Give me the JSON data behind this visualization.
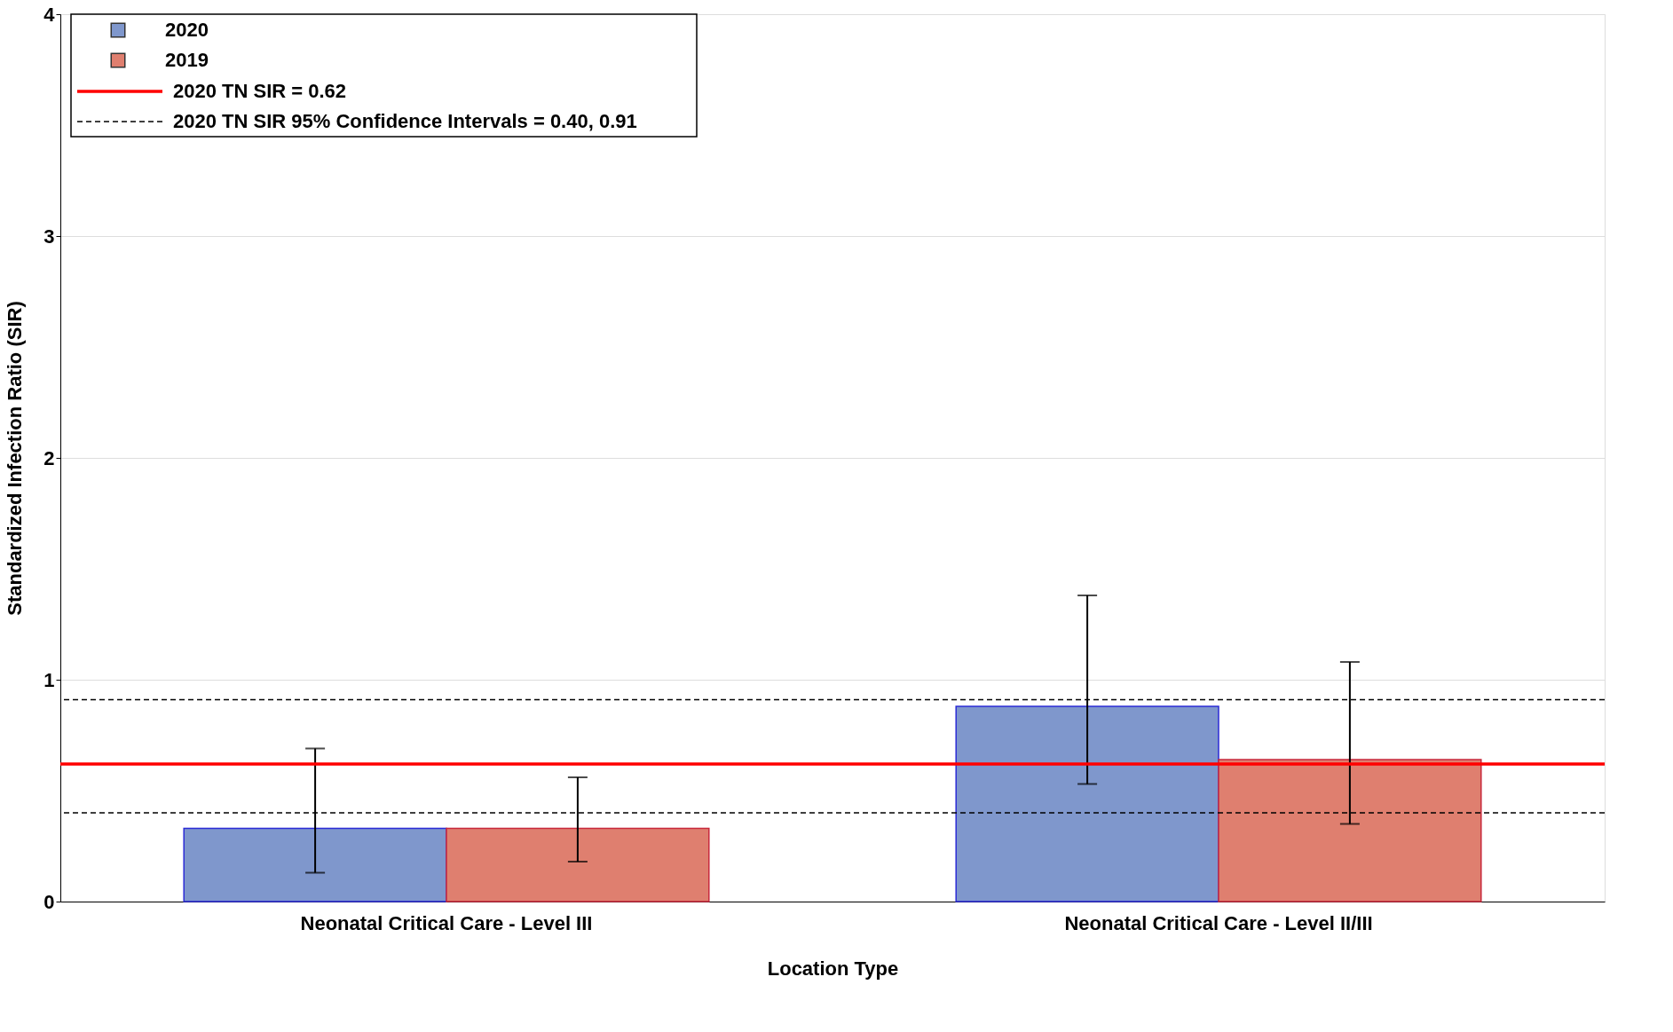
{
  "chart_data": {
    "type": "bar",
    "xlabel": "Location Type",
    "ylabel": "Standardized Infection Ratio (SIR)",
    "categories": [
      "Neonatal Critical Care - Level III",
      "Neonatal Critical Care - Level II/III"
    ],
    "series": [
      {
        "name": "2020",
        "color": "#7f97cc",
        "values": [
          0.33,
          0.88
        ],
        "errors": [
          [
            0.13,
            0.69
          ],
          [
            0.53,
            1.38
          ]
        ]
      },
      {
        "name": "2019",
        "color": "#df7f6f",
        "values": [
          0.33,
          0.64
        ],
        "errors": [
          [
            0.18,
            0.56
          ],
          [
            0.35,
            1.08
          ]
        ]
      }
    ],
    "ylim": [
      0,
      4
    ],
    "yticks": [
      0,
      1,
      2,
      3,
      4
    ],
    "grid": "y",
    "legend": "top left",
    "ref_lines": [
      {
        "axis": "y",
        "value": 0.62,
        "label": "2020 TN SIR = 0.62",
        "color": "#ff0000",
        "line_style": "solid"
      },
      {
        "axis": "y",
        "value": 0.4,
        "label": "2020 TN SIR 95% Confidence Intervals = 0.40, 0.91",
        "color": "#000000",
        "line_style": "dashed"
      },
      {
        "axis": "y",
        "value": 0.91,
        "label": null,
        "color": "#000000",
        "line_style": "dashed"
      }
    ]
  }
}
